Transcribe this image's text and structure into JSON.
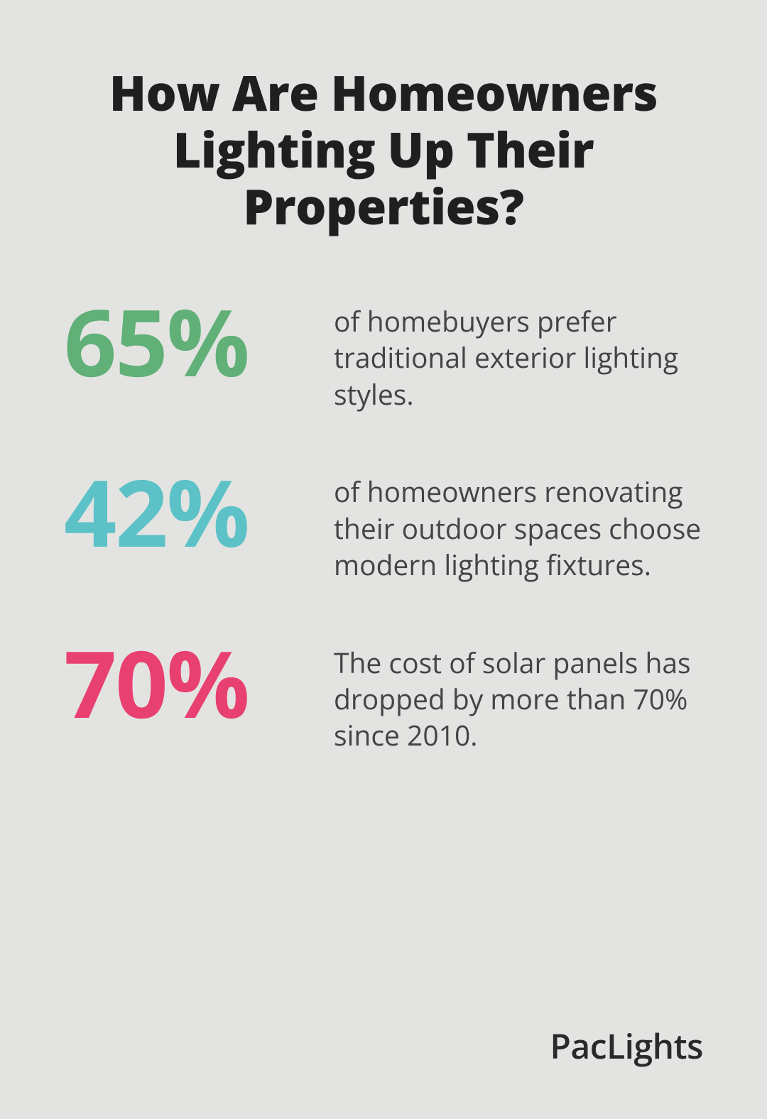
{
  "title": "How Are Homeowners Lighting Up Their Properties?",
  "background_color": "#e3e4e2",
  "title_color": "#1f1f1f",
  "title_fontsize": 68,
  "title_fontweight": 800,
  "stat_percent_fontsize": 130,
  "stat_desc_fontsize": 39,
  "stat_desc_color": "#444444",
  "stats": [
    {
      "percent": "65%",
      "color": "#60b078",
      "description": "of homebuyers prefer traditional exterior lighting styles."
    },
    {
      "percent": "42%",
      "color": "#5cc2c7",
      "description": "of homeowners renovating their outdoor spaces choose modern lighting fixtures."
    },
    {
      "percent": "70%",
      "color": "#e84070",
      "description": "The cost of solar panels has dropped by more than 70% since 2010."
    }
  ],
  "brand": "PacLights",
  "brand_color": "#2a2a2a",
  "brand_fontsize": 48
}
